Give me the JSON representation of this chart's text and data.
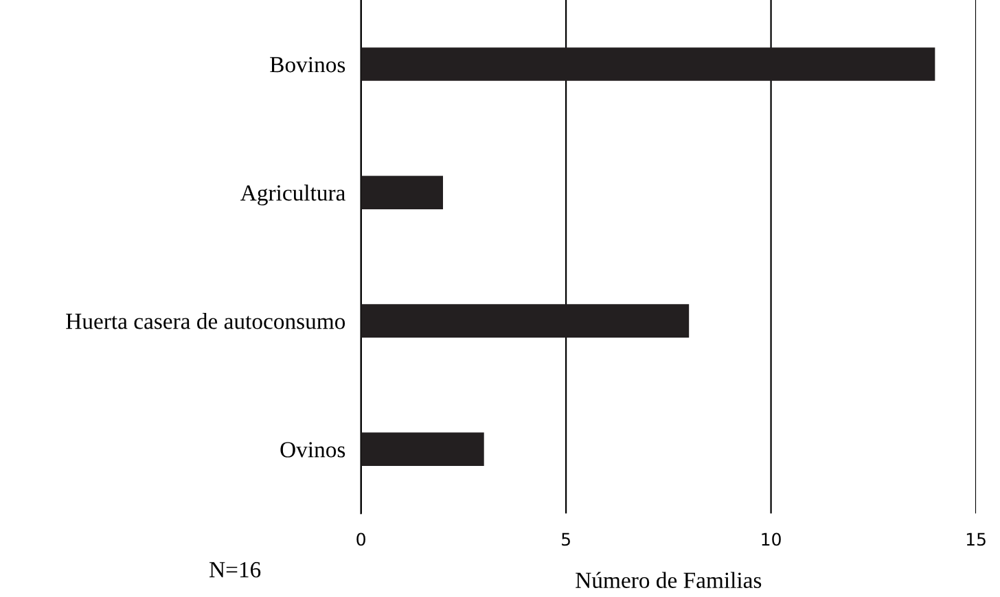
{
  "chart_data": {
    "type": "bar",
    "orientation": "horizontal",
    "categories": [
      "Bovinos",
      "Agricultura",
      "Huerta casera de autoconsumo",
      "Ovinos"
    ],
    "values": [
      14,
      2,
      8,
      3
    ],
    "color": "#231f20",
    "xlim": [
      0,
      15
    ],
    "xticks": [
      0,
      5,
      10,
      15
    ],
    "grid": "x",
    "xlabel": "Número de Familias",
    "annotations": [
      "N=16"
    ]
  }
}
